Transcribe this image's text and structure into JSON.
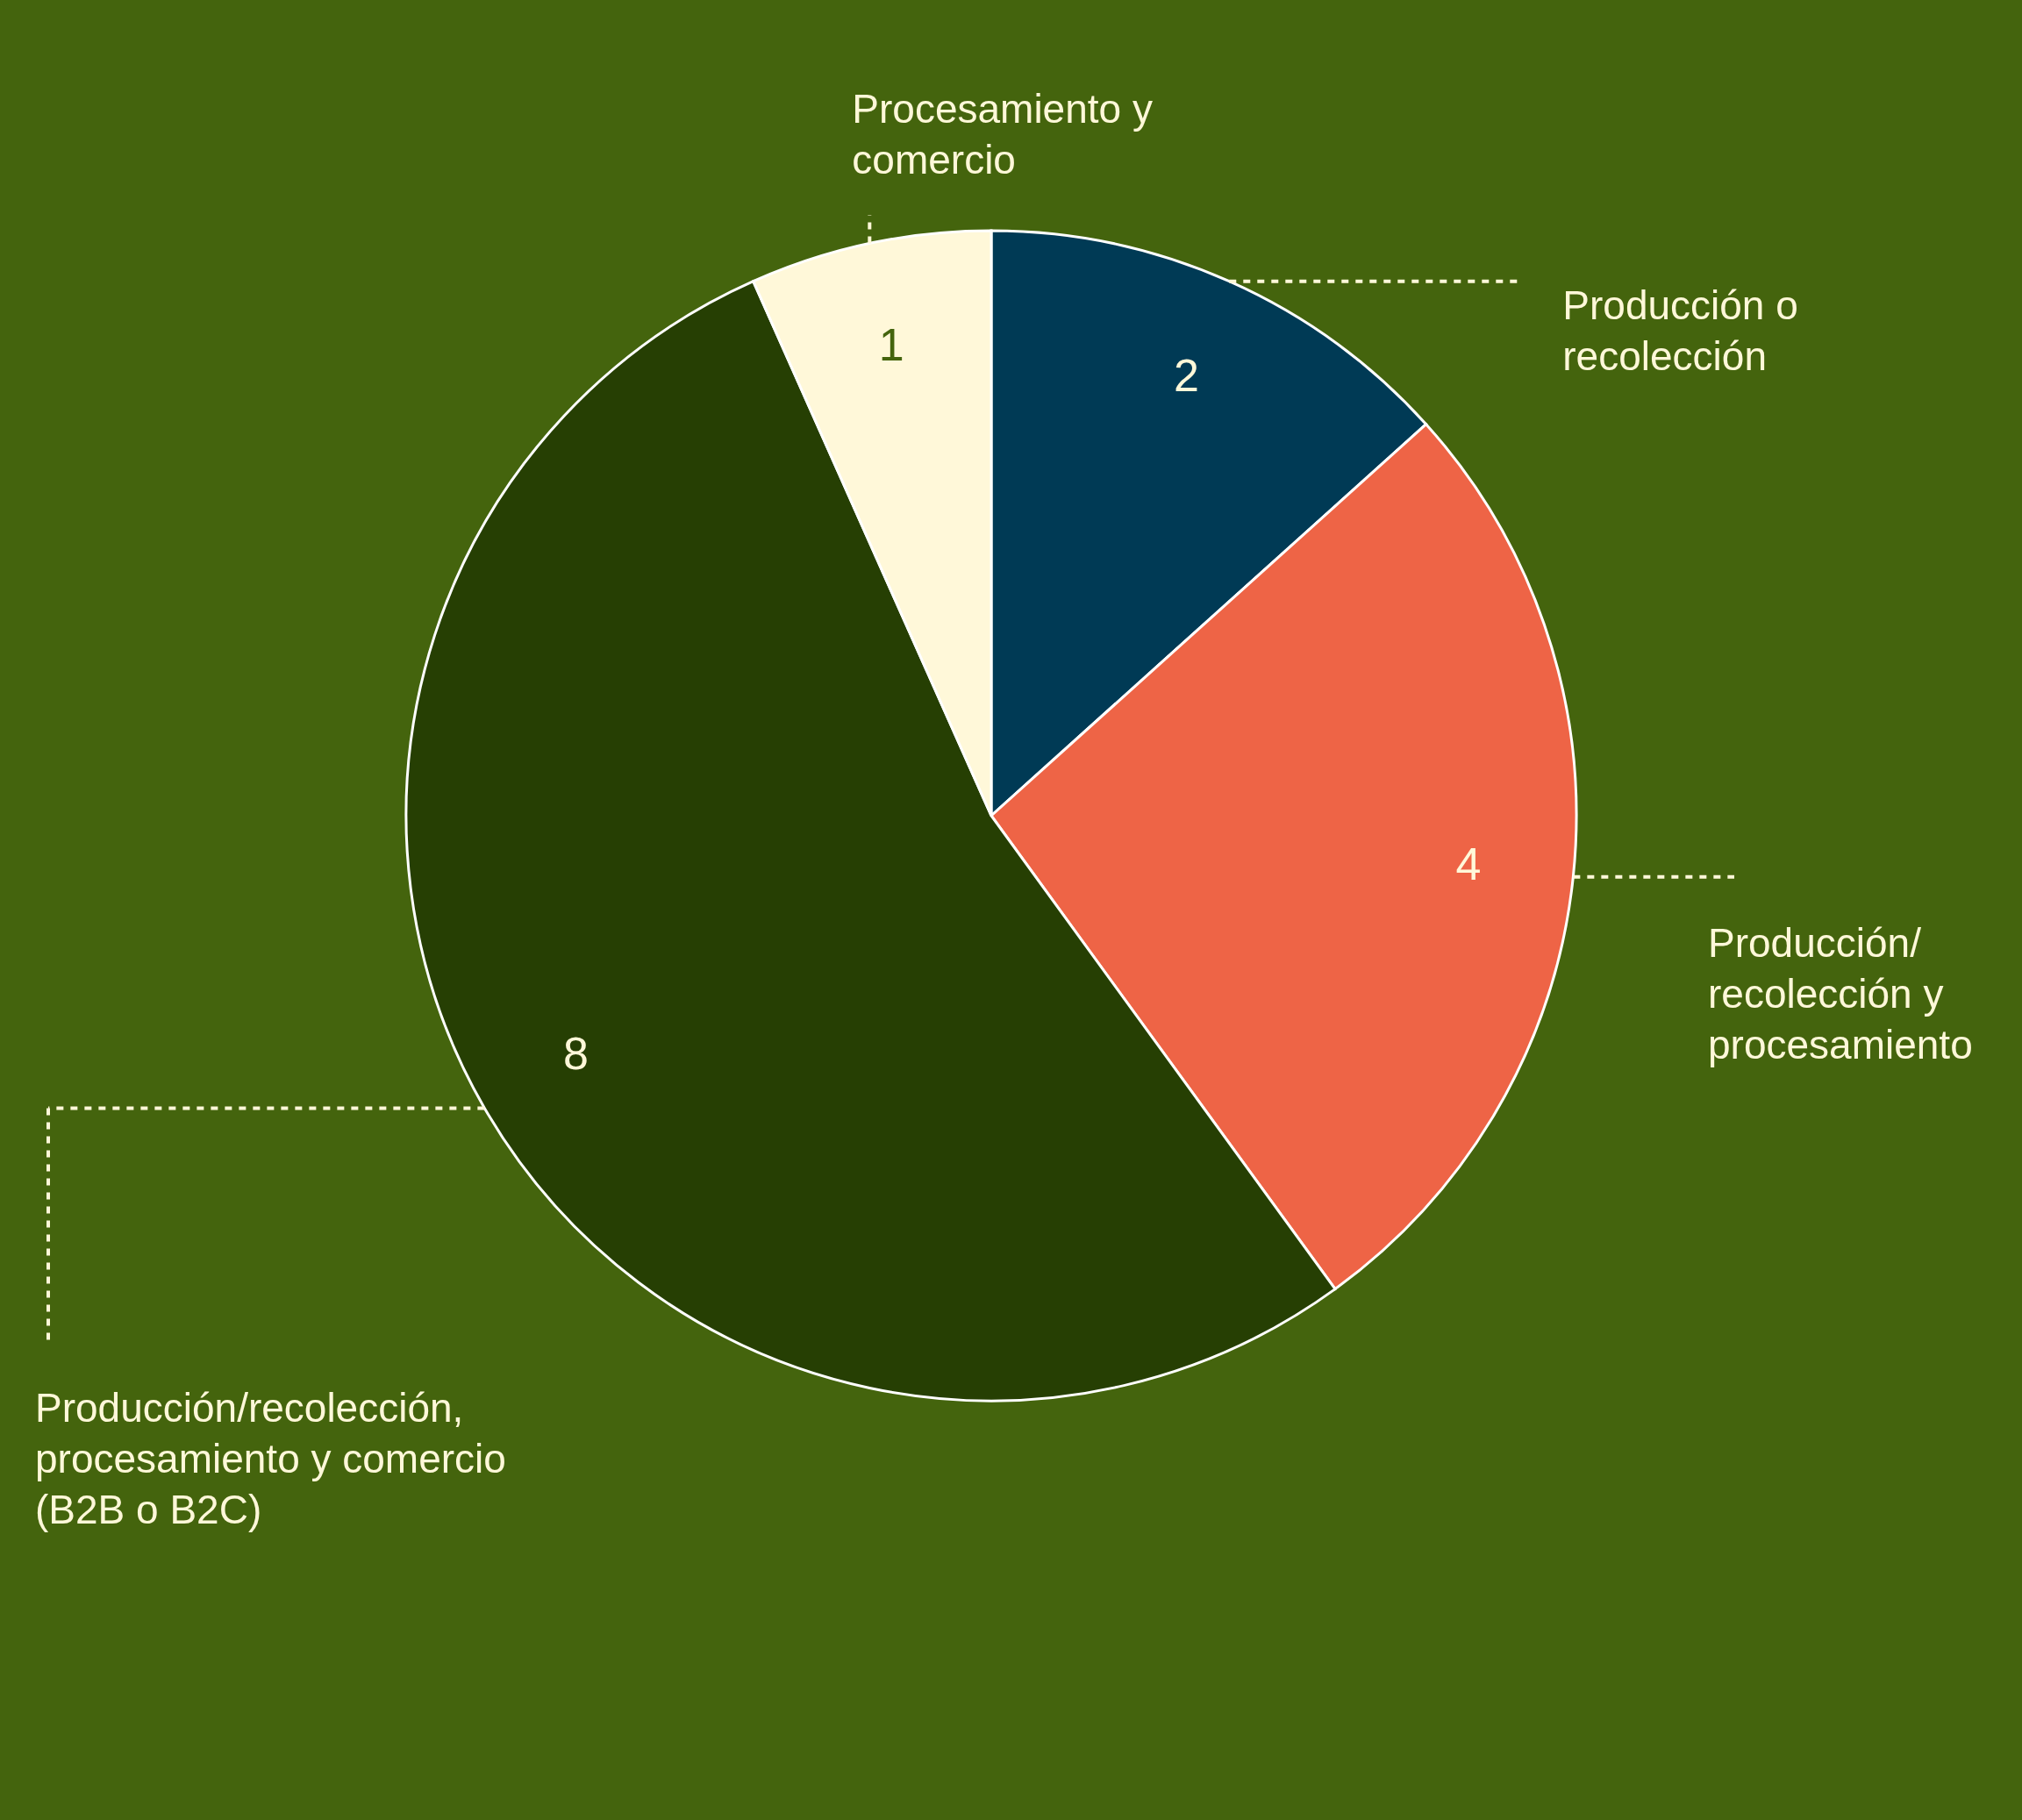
{
  "chart_data": {
    "type": "pie",
    "categories": [
      "Producción o recolección",
      "Producción/ recolección y procesamiento",
      "Producción/recolección, procesamiento y comercio (B2B o B2C)",
      "Procesamiento y comercio"
    ],
    "values": [
      2,
      4,
      8,
      1
    ],
    "colors": [
      "#003a55",
      "#ee6446",
      "#263f03",
      "#fff8d9"
    ],
    "data_labels": true
  }
}
